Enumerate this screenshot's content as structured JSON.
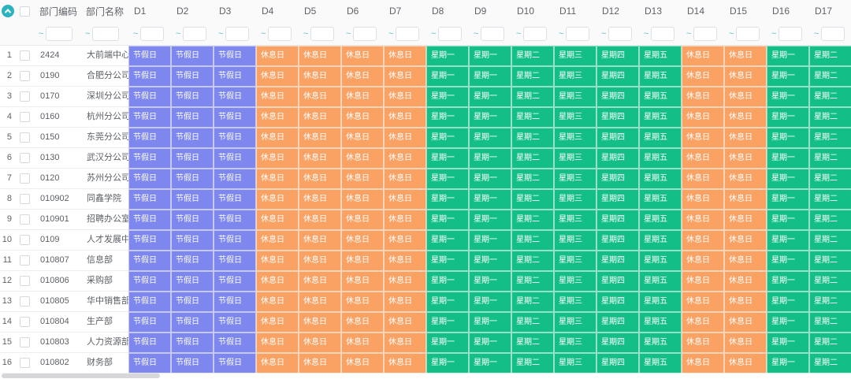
{
  "colors": {
    "holiday": "#7d87ee",
    "rest": "#f9a263",
    "weekday": "#14bf87",
    "accent_teal": "#2bb3bf",
    "sort_icon_blue": "#41b3d2"
  },
  "icons": {
    "collapse": "chevron-up",
    "sort": "caret-up-down"
  },
  "header": {
    "fixed_columns": [
      {
        "key": "code",
        "label": "部门编码",
        "sortable": true
      },
      {
        "key": "name",
        "label": "部门名称",
        "sortable": false
      }
    ],
    "day_columns": [
      "D1",
      "D2",
      "D3",
      "D4",
      "D5",
      "D6",
      "D7",
      "D8",
      "D9",
      "D10",
      "D11",
      "D12",
      "D13",
      "D14",
      "D15",
      "D16",
      "D17"
    ],
    "filter_prefix": "~"
  },
  "day_values": [
    {
      "text": "节假日",
      "type": "holiday"
    },
    {
      "text": "节假日",
      "type": "holiday"
    },
    {
      "text": "节假日",
      "type": "holiday"
    },
    {
      "text": "休息日",
      "type": "rest"
    },
    {
      "text": "休息日",
      "type": "rest"
    },
    {
      "text": "休息日",
      "type": "rest"
    },
    {
      "text": "休息日",
      "type": "rest"
    },
    {
      "text": "星期一",
      "type": "weekday"
    },
    {
      "text": "星期一",
      "type": "weekday"
    },
    {
      "text": "星期二",
      "type": "weekday"
    },
    {
      "text": "星期三",
      "type": "weekday"
    },
    {
      "text": "星期四",
      "type": "weekday"
    },
    {
      "text": "星期五",
      "type": "weekday"
    },
    {
      "text": "休息日",
      "type": "rest"
    },
    {
      "text": "休息日",
      "type": "rest"
    },
    {
      "text": "星期一",
      "type": "weekday"
    },
    {
      "text": "星期二",
      "type": "weekday"
    }
  ],
  "rows": [
    {
      "num": "1",
      "code": "2424",
      "name": "大前端中心"
    },
    {
      "num": "2",
      "code": "0190",
      "name": "合肥分公司"
    },
    {
      "num": "3",
      "code": "0170",
      "name": "深圳分公司"
    },
    {
      "num": "4",
      "code": "0160",
      "name": "杭州分公司"
    },
    {
      "num": "5",
      "code": "0150",
      "name": "东莞分公司"
    },
    {
      "num": "6",
      "code": "0130",
      "name": "武汉分公司"
    },
    {
      "num": "7",
      "code": "0120",
      "name": "苏州分公司"
    },
    {
      "num": "8",
      "code": "010902",
      "name": "同鑫学院"
    },
    {
      "num": "9",
      "code": "010901",
      "name": "招聘办公室"
    },
    {
      "num": "10",
      "code": "0109",
      "name": "人才发展中心"
    },
    {
      "num": "11",
      "code": "010807",
      "name": "信息部"
    },
    {
      "num": "12",
      "code": "010806",
      "name": "采购部"
    },
    {
      "num": "13",
      "code": "010805",
      "name": "华中销售部"
    },
    {
      "num": "14",
      "code": "010804",
      "name": "生产部"
    },
    {
      "num": "15",
      "code": "010803",
      "name": "人力资源部"
    },
    {
      "num": "16",
      "code": "010802",
      "name": "财务部"
    }
  ]
}
